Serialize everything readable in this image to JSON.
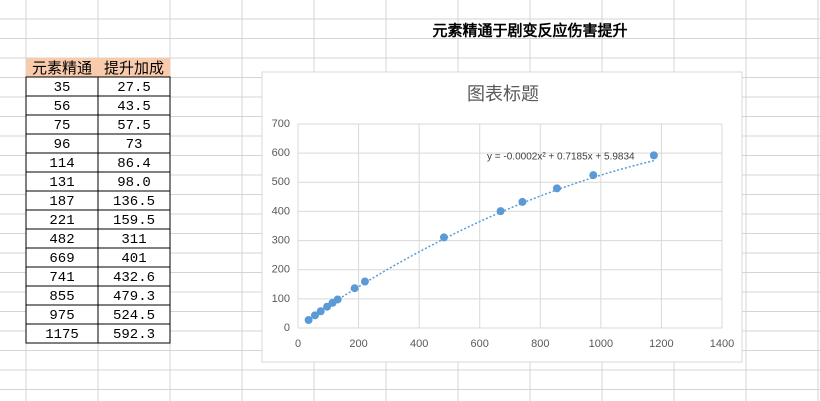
{
  "sheet": {
    "title": "元素精通于剧变反应伤害提升",
    "table": {
      "header": [
        "元素精通",
        "提升加成"
      ],
      "rows": [
        [
          "35",
          "27.5"
        ],
        [
          "56",
          "43.5"
        ],
        [
          "75",
          "57.5"
        ],
        [
          "96",
          "73"
        ],
        [
          "114",
          "86.4"
        ],
        [
          "131",
          "98.0"
        ],
        [
          "187",
          "136.5"
        ],
        [
          "221",
          "159.5"
        ],
        [
          "482",
          "311"
        ],
        [
          "669",
          "401"
        ],
        [
          "741",
          "432.6"
        ],
        [
          "855",
          "479.3"
        ],
        [
          "975",
          "524.5"
        ],
        [
          "1175",
          "592.3"
        ]
      ]
    }
  },
  "chart_data": {
    "type": "scatter",
    "title": "图表标题",
    "x": [
      35,
      56,
      75,
      96,
      114,
      131,
      187,
      221,
      482,
      669,
      741,
      855,
      975,
      1175
    ],
    "series": [
      {
        "color": "#5b9bd5",
        "values": [
          27.5,
          43.5,
          57.5,
          73,
          86.4,
          98.0,
          136.5,
          159.5,
          311,
          401,
          432.6,
          479.3,
          524.5,
          592.3
        ]
      }
    ],
    "xlim": [
      0,
      1400
    ],
    "xticks": [
      0,
      200,
      400,
      600,
      800,
      1000,
      1200,
      1400
    ],
    "ylim": [
      0,
      700
    ],
    "yticks": [
      0,
      100,
      200,
      300,
      400,
      500,
      600,
      700
    ],
    "grid": true,
    "trendline": {
      "coefficients": [
        -0.0002,
        0.7185,
        5.9834
      ],
      "label": "y = -0.0002x² + 0.7185x + 5.9834"
    }
  }
}
